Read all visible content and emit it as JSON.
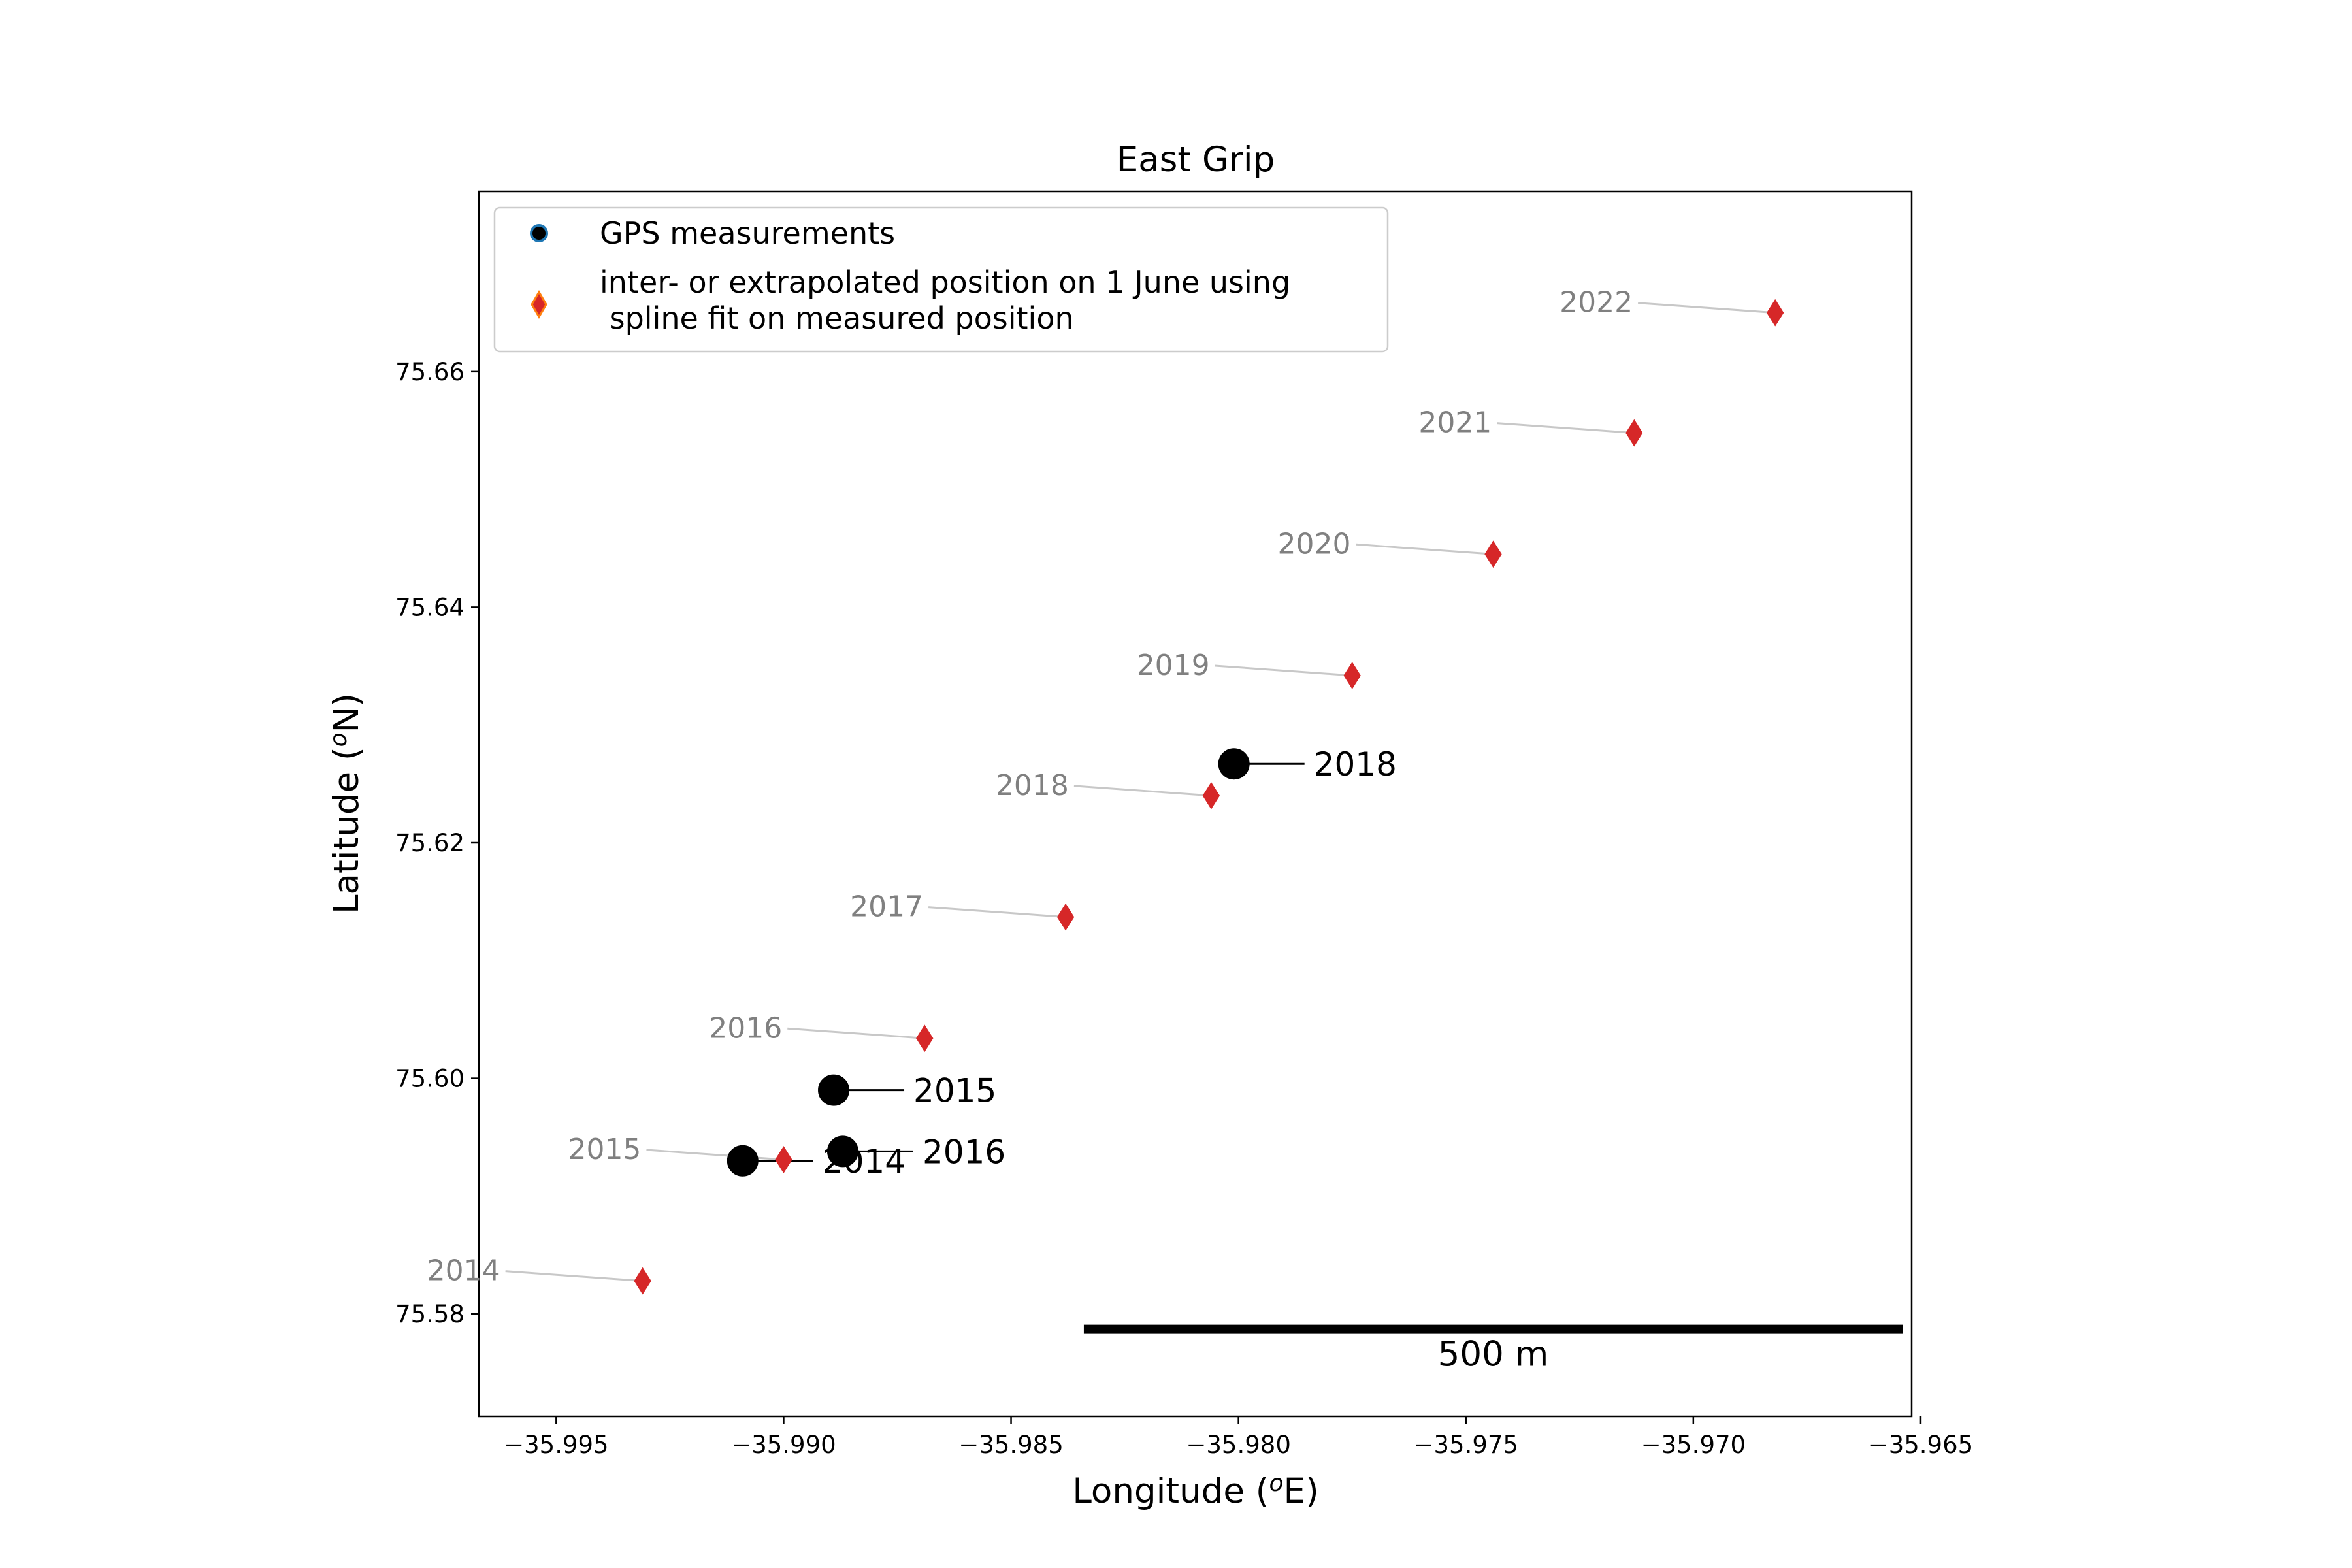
{
  "chart_data": {
    "type": "scatter",
    "title": "East Grip",
    "xlabel_main": "Longitude (",
    "xlabel_sup": "o",
    "xlabel_end": "E)",
    "ylabel_main": "Latitude (",
    "ylabel_sup": "o",
    "ylabel_end": "N)",
    "xlim": [
      -35.9967,
      -35.9652
    ],
    "ylim": [
      75.5713,
      75.6753
    ],
    "xticks": [
      -35.995,
      -35.99,
      -35.985,
      -35.98,
      -35.975,
      -35.97,
      -35.965
    ],
    "xtick_labels": [
      "−35.995",
      "−35.990",
      "−35.985",
      "−35.980",
      "−35.975",
      "−35.970",
      "−35.965"
    ],
    "yticks": [
      75.58,
      75.6,
      75.62,
      75.64,
      75.66
    ],
    "ytick_labels": [
      "75.58",
      "75.60",
      "75.62",
      "75.64",
      "75.66"
    ],
    "grid": false,
    "legend_placement": "upper-left",
    "series": [
      {
        "name": "GPS measurements",
        "marker": "circle",
        "color": "#000000",
        "edge_color": "#1f77b4",
        "points": [
          {
            "x": -35.9909,
            "y": 75.593,
            "label": "2014"
          },
          {
            "x": -35.9889,
            "y": 75.599,
            "label": "2015"
          },
          {
            "x": -35.9887,
            "y": 75.5938,
            "label": "2016"
          },
          {
            "x": -35.9801,
            "y": 75.6267,
            "label": "2018"
          }
        ]
      },
      {
        "name": "inter- or extrapolated position on 1 June using\n spline fit on measured position",
        "marker": "diamond",
        "color": "#d62728",
        "edge_color": "#ff7f0e",
        "points": [
          {
            "x": -35.9931,
            "y": 75.5828,
            "label": "2014"
          },
          {
            "x": -35.99,
            "y": 75.5931,
            "label": "2015"
          },
          {
            "x": -35.9869,
            "y": 75.6034,
            "label": "2016"
          },
          {
            "x": -35.9838,
            "y": 75.6137,
            "label": "2017"
          },
          {
            "x": -35.9806,
            "y": 75.624,
            "label": "2018"
          },
          {
            "x": -35.9775,
            "y": 75.6342,
            "label": "2019"
          },
          {
            "x": -35.9744,
            "y": 75.6445,
            "label": "2020"
          },
          {
            "x": -35.9713,
            "y": 75.6548,
            "label": "2021"
          },
          {
            "x": -35.9682,
            "y": 75.665,
            "label": "2022"
          }
        ]
      }
    ],
    "scale_bar": {
      "label": "500 m",
      "x_start": -35.9834,
      "x_end": -35.9654,
      "y": 75.5787
    }
  },
  "legend": {
    "gps_label": "GPS measurements",
    "interp_label_line1": "inter- or extrapolated position on 1 June using",
    "interp_label_line2": " spline fit on measured position"
  }
}
